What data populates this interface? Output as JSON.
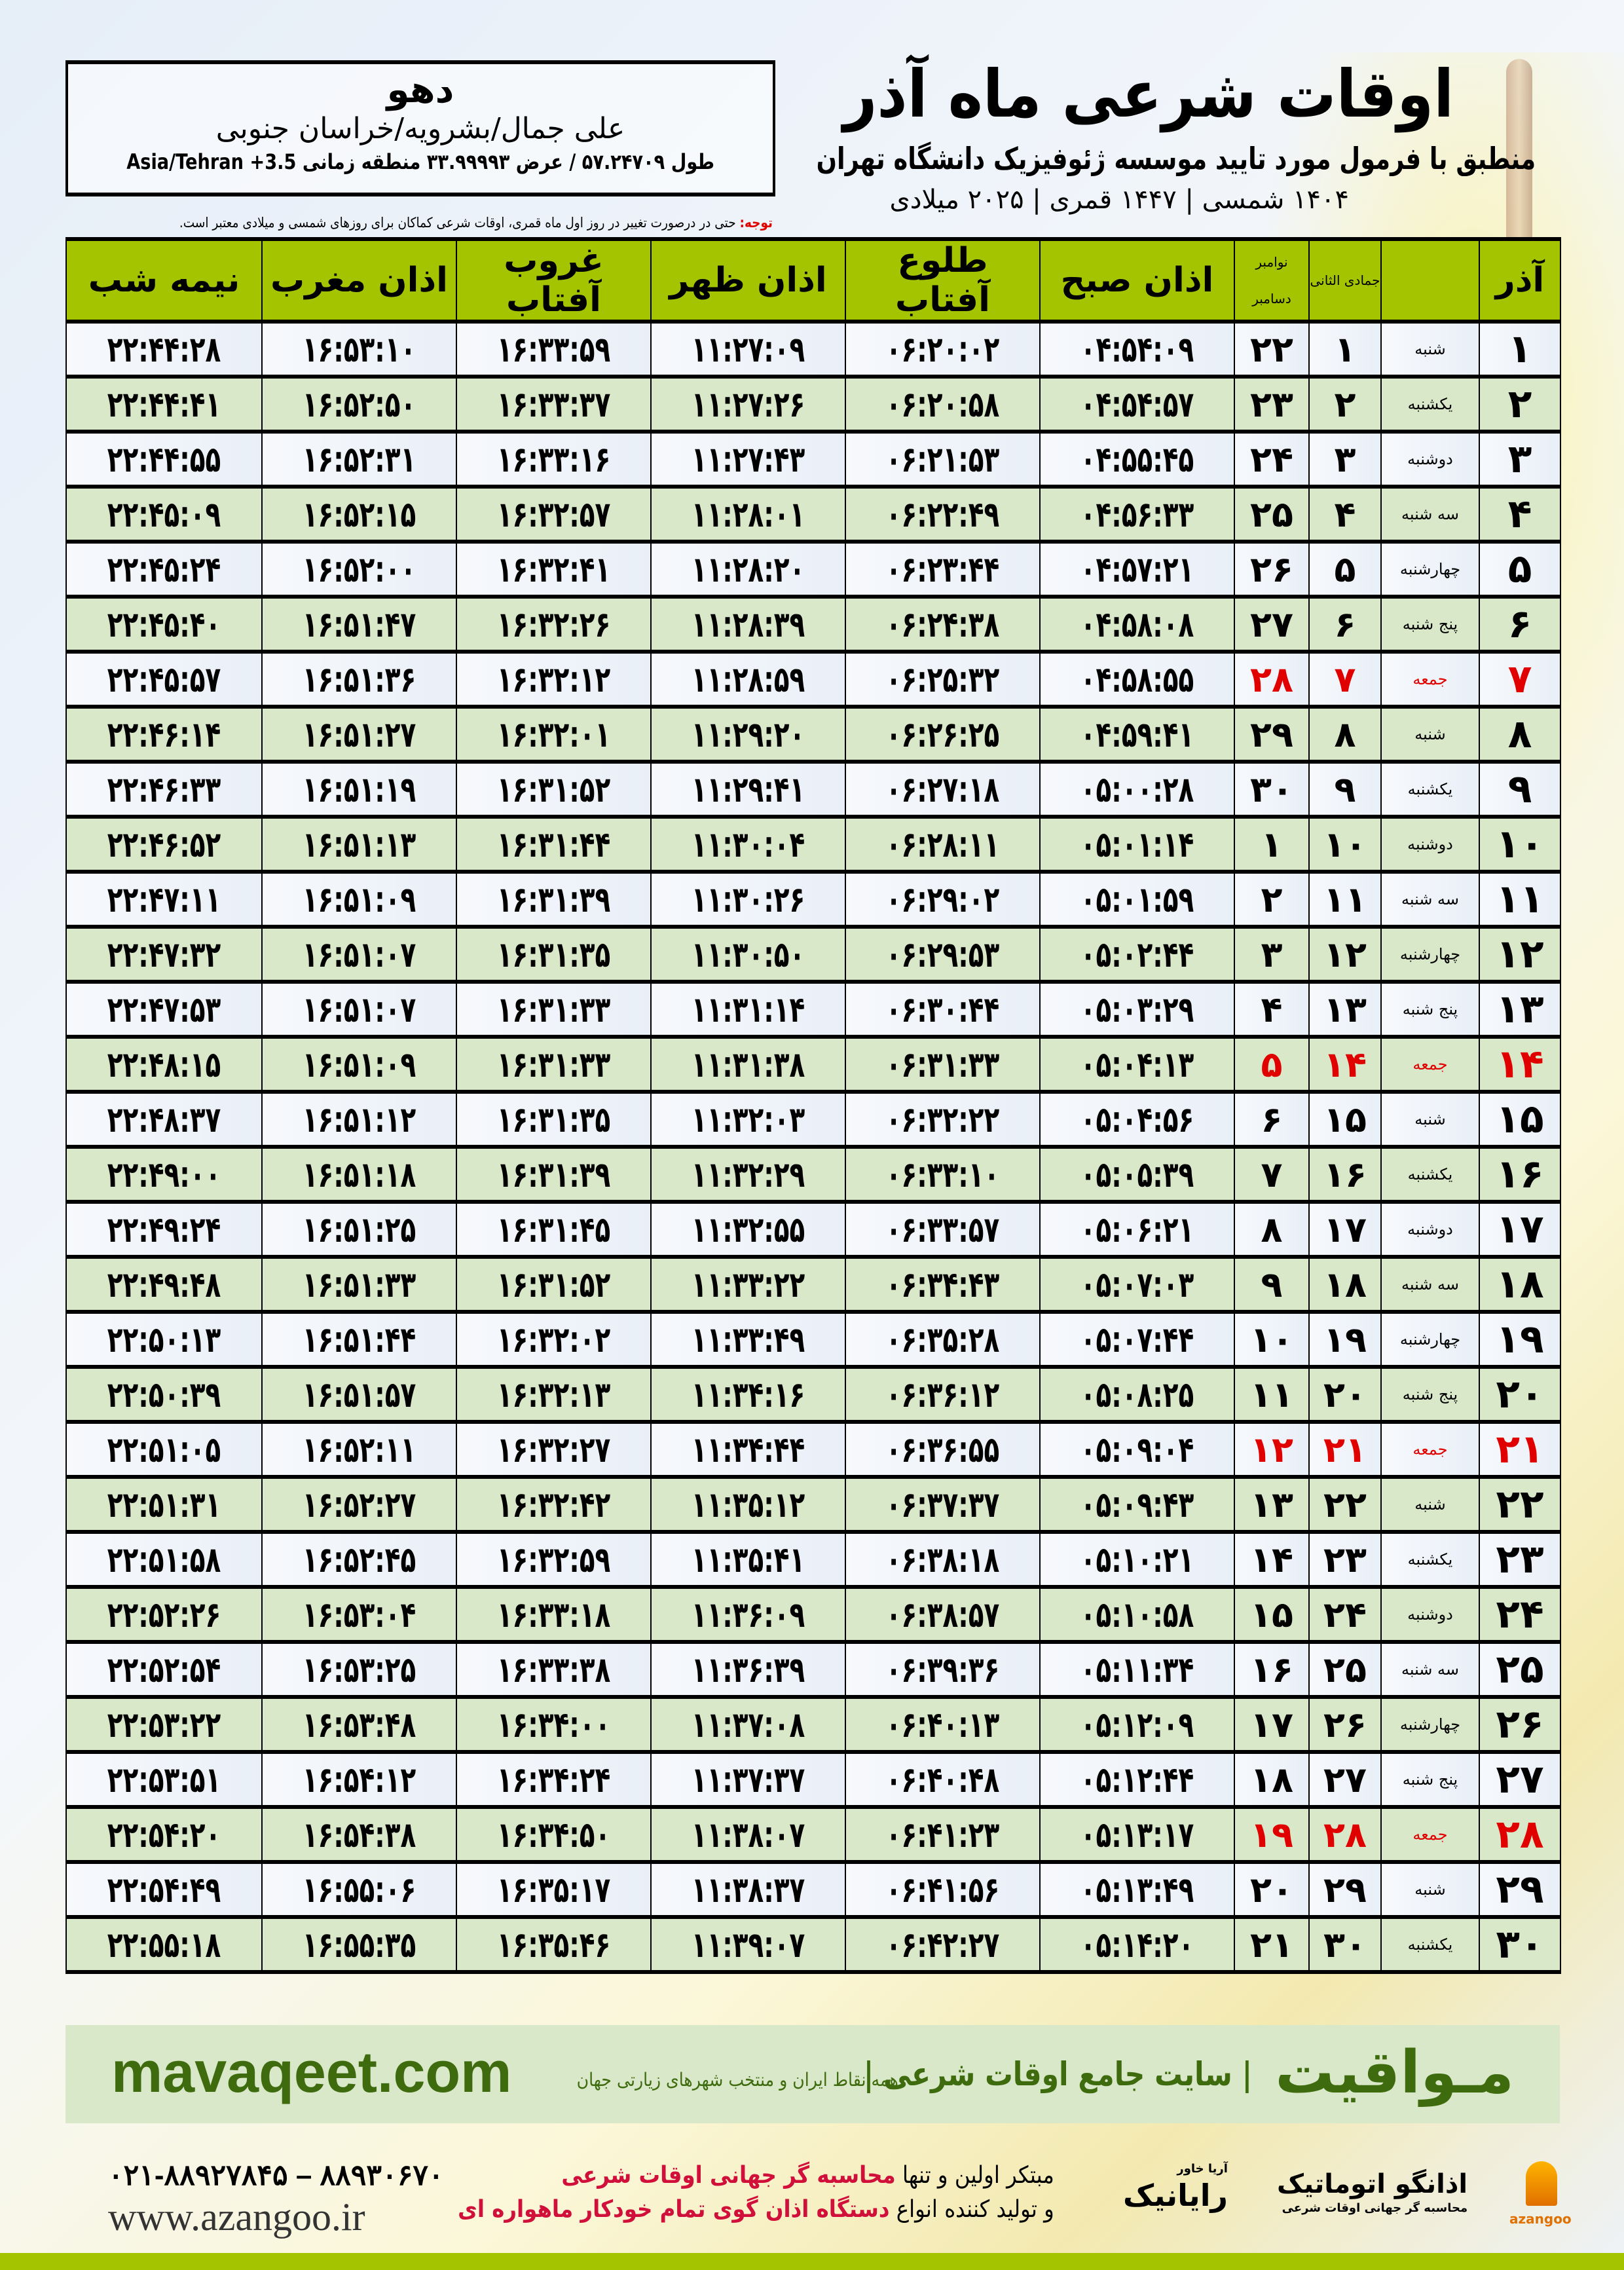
{
  "header": {
    "title": "اوقات شرعی ماه آذر",
    "subtitle": "منطبق با فرمول مورد تایید موسسه ژئوفیزیک دانشگاه تهران",
    "dates": "۱۴۰۴ شمسی | ۱۴۴۷ قمری | ۲۰۲۵ میلادی"
  },
  "location": {
    "city": "دهو",
    "place": "علی جمال/بشرویه/خراسان جنوبی",
    "coords": "طول ۵۷.۲۴۷۰۹ / عرض ۳۳.۹۹۹۹۳ منطقه زمانی ‎Asia/Tehran +3.5"
  },
  "note": {
    "label": "توجه:",
    "text": " حتی در درصورت تغییر در روز اول ماه قمری، اوقات شرعی کماکان برای روزهای شمسی و میلادی معتبر است."
  },
  "columns": {
    "day": "آذر",
    "weekday": "",
    "hijri": "جمادی الثانی",
    "greg_top": "نوامبر",
    "greg_bottom": "دسامبر",
    "fajr": "اذان صبح",
    "sunrise": "طلوع آفتاب",
    "dhuhr": "اذان ظهر",
    "sunset": "غروب آفتاب",
    "maghrib": "اذان مغرب",
    "midnight": "نیمه شب"
  },
  "colors": {
    "header_green": "#a5c400",
    "row_green": "#d9e8c8",
    "friday_red": "#e00000",
    "brand_green": "#3d6b0d"
  },
  "rows": [
    {
      "day": "۱",
      "weekday": "شنبه",
      "hijri": "۱",
      "greg": "۲۲",
      "fajr": "۰۴:۵۴:۰۹",
      "sunrise": "۰۶:۲۰:۰۲",
      "dhuhr": "۱۱:۲۷:۰۹",
      "sunset": "۱۶:۳۳:۵۹",
      "maghrib": "۱۶:۵۳:۱۰",
      "midnight": "۲۲:۴۴:۲۸",
      "friday": false
    },
    {
      "day": "۲",
      "weekday": "یکشنبه",
      "hijri": "۲",
      "greg": "۲۳",
      "fajr": "۰۴:۵۴:۵۷",
      "sunrise": "۰۶:۲۰:۵۸",
      "dhuhr": "۱۱:۲۷:۲۶",
      "sunset": "۱۶:۳۳:۳۷",
      "maghrib": "۱۶:۵۲:۵۰",
      "midnight": "۲۲:۴۴:۴۱",
      "friday": false
    },
    {
      "day": "۳",
      "weekday": "دوشنبه",
      "hijri": "۳",
      "greg": "۲۴",
      "fajr": "۰۴:۵۵:۴۵",
      "sunrise": "۰۶:۲۱:۵۳",
      "dhuhr": "۱۱:۲۷:۴۳",
      "sunset": "۱۶:۳۳:۱۶",
      "maghrib": "۱۶:۵۲:۳۱",
      "midnight": "۲۲:۴۴:۵۵",
      "friday": false
    },
    {
      "day": "۴",
      "weekday": "سه شنبه",
      "hijri": "۴",
      "greg": "۲۵",
      "fajr": "۰۴:۵۶:۳۳",
      "sunrise": "۰۶:۲۲:۴۹",
      "dhuhr": "۱۱:۲۸:۰۱",
      "sunset": "۱۶:۳۲:۵۷",
      "maghrib": "۱۶:۵۲:۱۵",
      "midnight": "۲۲:۴۵:۰۹",
      "friday": false
    },
    {
      "day": "۵",
      "weekday": "چهارشنبه",
      "hijri": "۵",
      "greg": "۲۶",
      "fajr": "۰۴:۵۷:۲۱",
      "sunrise": "۰۶:۲۳:۴۴",
      "dhuhr": "۱۱:۲۸:۲۰",
      "sunset": "۱۶:۳۲:۴۱",
      "maghrib": "۱۶:۵۲:۰۰",
      "midnight": "۲۲:۴۵:۲۴",
      "friday": false
    },
    {
      "day": "۶",
      "weekday": "پنج شنبه",
      "hijri": "۶",
      "greg": "۲۷",
      "fajr": "۰۴:۵۸:۰۸",
      "sunrise": "۰۶:۲۴:۳۸",
      "dhuhr": "۱۱:۲۸:۳۹",
      "sunset": "۱۶:۳۲:۲۶",
      "maghrib": "۱۶:۵۱:۴۷",
      "midnight": "۲۲:۴۵:۴۰",
      "friday": false
    },
    {
      "day": "۷",
      "weekday": "جمعه",
      "hijri": "۷",
      "greg": "۲۸",
      "fajr": "۰۴:۵۸:۵۵",
      "sunrise": "۰۶:۲۵:۳۲",
      "dhuhr": "۱۱:۲۸:۵۹",
      "sunset": "۱۶:۳۲:۱۲",
      "maghrib": "۱۶:۵۱:۳۶",
      "midnight": "۲۲:۴۵:۵۷",
      "friday": true
    },
    {
      "day": "۸",
      "weekday": "شنبه",
      "hijri": "۸",
      "greg": "۲۹",
      "fajr": "۰۴:۵۹:۴۱",
      "sunrise": "۰۶:۲۶:۲۵",
      "dhuhr": "۱۱:۲۹:۲۰",
      "sunset": "۱۶:۳۲:۰۱",
      "maghrib": "۱۶:۵۱:۲۷",
      "midnight": "۲۲:۴۶:۱۴",
      "friday": false
    },
    {
      "day": "۹",
      "weekday": "یکشنبه",
      "hijri": "۹",
      "greg": "۳۰",
      "fajr": "۰۵:۰۰:۲۸",
      "sunrise": "۰۶:۲۷:۱۸",
      "dhuhr": "۱۱:۲۹:۴۱",
      "sunset": "۱۶:۳۱:۵۲",
      "maghrib": "۱۶:۵۱:۱۹",
      "midnight": "۲۲:۴۶:۳۳",
      "friday": false
    },
    {
      "day": "۱۰",
      "weekday": "دوشنبه",
      "hijri": "۱۰",
      "greg": "۱",
      "fajr": "۰۵:۰۱:۱۴",
      "sunrise": "۰۶:۲۸:۱۱",
      "dhuhr": "۱۱:۳۰:۰۴",
      "sunset": "۱۶:۳۱:۴۴",
      "maghrib": "۱۶:۵۱:۱۳",
      "midnight": "۲۲:۴۶:۵۲",
      "friday": false
    },
    {
      "day": "۱۱",
      "weekday": "سه شنبه",
      "hijri": "۱۱",
      "greg": "۲",
      "fajr": "۰۵:۰۱:۵۹",
      "sunrise": "۰۶:۲۹:۰۲",
      "dhuhr": "۱۱:۳۰:۲۶",
      "sunset": "۱۶:۳۱:۳۹",
      "maghrib": "۱۶:۵۱:۰۹",
      "midnight": "۲۲:۴۷:۱۱",
      "friday": false
    },
    {
      "day": "۱۲",
      "weekday": "چهارشنبه",
      "hijri": "۱۲",
      "greg": "۳",
      "fajr": "۰۵:۰۲:۴۴",
      "sunrise": "۰۶:۲۹:۵۳",
      "dhuhr": "۱۱:۳۰:۵۰",
      "sunset": "۱۶:۳۱:۳۵",
      "maghrib": "۱۶:۵۱:۰۷",
      "midnight": "۲۲:۴۷:۳۲",
      "friday": false
    },
    {
      "day": "۱۳",
      "weekday": "پنج شنبه",
      "hijri": "۱۳",
      "greg": "۴",
      "fajr": "۰۵:۰۳:۲۹",
      "sunrise": "۰۶:۳۰:۴۴",
      "dhuhr": "۱۱:۳۱:۱۴",
      "sunset": "۱۶:۳۱:۳۳",
      "maghrib": "۱۶:۵۱:۰۷",
      "midnight": "۲۲:۴۷:۵۳",
      "friday": false
    },
    {
      "day": "۱۴",
      "weekday": "جمعه",
      "hijri": "۱۴",
      "greg": "۵",
      "fajr": "۰۵:۰۴:۱۳",
      "sunrise": "۰۶:۳۱:۳۳",
      "dhuhr": "۱۱:۳۱:۳۸",
      "sunset": "۱۶:۳۱:۳۳",
      "maghrib": "۱۶:۵۱:۰۹",
      "midnight": "۲۲:۴۸:۱۵",
      "friday": true
    },
    {
      "day": "۱۵",
      "weekday": "شنبه",
      "hijri": "۱۵",
      "greg": "۶",
      "fajr": "۰۵:۰۴:۵۶",
      "sunrise": "۰۶:۳۲:۲۲",
      "dhuhr": "۱۱:۳۲:۰۳",
      "sunset": "۱۶:۳۱:۳۵",
      "maghrib": "۱۶:۵۱:۱۲",
      "midnight": "۲۲:۴۸:۳۷",
      "friday": false
    },
    {
      "day": "۱۶",
      "weekday": "یکشنبه",
      "hijri": "۱۶",
      "greg": "۷",
      "fajr": "۰۵:۰۵:۳۹",
      "sunrise": "۰۶:۳۳:۱۰",
      "dhuhr": "۱۱:۳۲:۲۹",
      "sunset": "۱۶:۳۱:۳۹",
      "maghrib": "۱۶:۵۱:۱۸",
      "midnight": "۲۲:۴۹:۰۰",
      "friday": false
    },
    {
      "day": "۱۷",
      "weekday": "دوشنبه",
      "hijri": "۱۷",
      "greg": "۸",
      "fajr": "۰۵:۰۶:۲۱",
      "sunrise": "۰۶:۳۳:۵۷",
      "dhuhr": "۱۱:۳۲:۵۵",
      "sunset": "۱۶:۳۱:۴۵",
      "maghrib": "۱۶:۵۱:۲۵",
      "midnight": "۲۲:۴۹:۲۴",
      "friday": false
    },
    {
      "day": "۱۸",
      "weekday": "سه شنبه",
      "hijri": "۱۸",
      "greg": "۹",
      "fajr": "۰۵:۰۷:۰۳",
      "sunrise": "۰۶:۳۴:۴۳",
      "dhuhr": "۱۱:۳۳:۲۲",
      "sunset": "۱۶:۳۱:۵۲",
      "maghrib": "۱۶:۵۱:۳۳",
      "midnight": "۲۲:۴۹:۴۸",
      "friday": false
    },
    {
      "day": "۱۹",
      "weekday": "چهارشنبه",
      "hijri": "۱۹",
      "greg": "۱۰",
      "fajr": "۰۵:۰۷:۴۴",
      "sunrise": "۰۶:۳۵:۲۸",
      "dhuhr": "۱۱:۳۳:۴۹",
      "sunset": "۱۶:۳۲:۰۲",
      "maghrib": "۱۶:۵۱:۴۴",
      "midnight": "۲۲:۵۰:۱۳",
      "friday": false
    },
    {
      "day": "۲۰",
      "weekday": "پنج شنبه",
      "hijri": "۲۰",
      "greg": "۱۱",
      "fajr": "۰۵:۰۸:۲۵",
      "sunrise": "۰۶:۳۶:۱۲",
      "dhuhr": "۱۱:۳۴:۱۶",
      "sunset": "۱۶:۳۲:۱۳",
      "maghrib": "۱۶:۵۱:۵۷",
      "midnight": "۲۲:۵۰:۳۹",
      "friday": false
    },
    {
      "day": "۲۱",
      "weekday": "جمعه",
      "hijri": "۲۱",
      "greg": "۱۲",
      "fajr": "۰۵:۰۹:۰۴",
      "sunrise": "۰۶:۳۶:۵۵",
      "dhuhr": "۱۱:۳۴:۴۴",
      "sunset": "۱۶:۳۲:۲۷",
      "maghrib": "۱۶:۵۲:۱۱",
      "midnight": "۲۲:۵۱:۰۵",
      "friday": true
    },
    {
      "day": "۲۲",
      "weekday": "شنبه",
      "hijri": "۲۲",
      "greg": "۱۳",
      "fajr": "۰۵:۰۹:۴۳",
      "sunrise": "۰۶:۳۷:۳۷",
      "dhuhr": "۱۱:۳۵:۱۲",
      "sunset": "۱۶:۳۲:۴۲",
      "maghrib": "۱۶:۵۲:۲۷",
      "midnight": "۲۲:۵۱:۳۱",
      "friday": false
    },
    {
      "day": "۲۳",
      "weekday": "یکشنبه",
      "hijri": "۲۳",
      "greg": "۱۴",
      "fajr": "۰۵:۱۰:۲۱",
      "sunrise": "۰۶:۳۸:۱۸",
      "dhuhr": "۱۱:۳۵:۴۱",
      "sunset": "۱۶:۳۲:۵۹",
      "maghrib": "۱۶:۵۲:۴۵",
      "midnight": "۲۲:۵۱:۵۸",
      "friday": false
    },
    {
      "day": "۲۴",
      "weekday": "دوشنبه",
      "hijri": "۲۴",
      "greg": "۱۵",
      "fajr": "۰۵:۱۰:۵۸",
      "sunrise": "۰۶:۳۸:۵۷",
      "dhuhr": "۱۱:۳۶:۰۹",
      "sunset": "۱۶:۳۳:۱۸",
      "maghrib": "۱۶:۵۳:۰۴",
      "midnight": "۲۲:۵۲:۲۶",
      "friday": false
    },
    {
      "day": "۲۵",
      "weekday": "سه شنبه",
      "hijri": "۲۵",
      "greg": "۱۶",
      "fajr": "۰۵:۱۱:۳۴",
      "sunrise": "۰۶:۳۹:۳۶",
      "dhuhr": "۱۱:۳۶:۳۹",
      "sunset": "۱۶:۳۳:۳۸",
      "maghrib": "۱۶:۵۳:۲۵",
      "midnight": "۲۲:۵۲:۵۴",
      "friday": false
    },
    {
      "day": "۲۶",
      "weekday": "چهارشنبه",
      "hijri": "۲۶",
      "greg": "۱۷",
      "fajr": "۰۵:۱۲:۰۹",
      "sunrise": "۰۶:۴۰:۱۳",
      "dhuhr": "۱۱:۳۷:۰۸",
      "sunset": "۱۶:۳۴:۰۰",
      "maghrib": "۱۶:۵۳:۴۸",
      "midnight": "۲۲:۵۳:۲۲",
      "friday": false
    },
    {
      "day": "۲۷",
      "weekday": "پنج شنبه",
      "hijri": "۲۷",
      "greg": "۱۸",
      "fajr": "۰۵:۱۲:۴۴",
      "sunrise": "۰۶:۴۰:۴۸",
      "dhuhr": "۱۱:۳۷:۳۷",
      "sunset": "۱۶:۳۴:۲۴",
      "maghrib": "۱۶:۵۴:۱۲",
      "midnight": "۲۲:۵۳:۵۱",
      "friday": false
    },
    {
      "day": "۲۸",
      "weekday": "جمعه",
      "hijri": "۲۸",
      "greg": "۱۹",
      "fajr": "۰۵:۱۳:۱۷",
      "sunrise": "۰۶:۴۱:۲۳",
      "dhuhr": "۱۱:۳۸:۰۷",
      "sunset": "۱۶:۳۴:۵۰",
      "maghrib": "۱۶:۵۴:۳۸",
      "midnight": "۲۲:۵۴:۲۰",
      "friday": true
    },
    {
      "day": "۲۹",
      "weekday": "شنبه",
      "hijri": "۲۹",
      "greg": "۲۰",
      "fajr": "۰۵:۱۳:۴۹",
      "sunrise": "۰۶:۴۱:۵۶",
      "dhuhr": "۱۱:۳۸:۳۷",
      "sunset": "۱۶:۳۵:۱۷",
      "maghrib": "۱۶:۵۵:۰۶",
      "midnight": "۲۲:۵۴:۴۹",
      "friday": false
    },
    {
      "day": "۳۰",
      "weekday": "یکشنبه",
      "hijri": "۳۰",
      "greg": "۲۱",
      "fajr": "۰۵:۱۴:۲۰",
      "sunrise": "۰۶:۴۲:۲۷",
      "dhuhr": "۱۱:۳۹:۰۷",
      "sunset": "۱۶:۳۵:۴۶",
      "maghrib": "۱۶:۵۵:۳۵",
      "midnight": "۲۲:۵۵:۱۸",
      "friday": false
    }
  ],
  "footer": {
    "brand": "مـواقیت",
    "brand_sub": "| سایت جامع اوقات شرعی |",
    "brand_sub2": "همه نقاط ایران و منتخب شهرهای زیارتی جهان",
    "site": "mavaqeet.com",
    "ad_line1_a": "مبتکر اولین و تنها ",
    "ad_line1_b": "محاسبه گر جهانی اوقات شرعی",
    "ad_line2_a": "و تولید کننده انواع ",
    "ad_line2_b": "دستگاه اذان گوی تمام خودکار ماهواره ای",
    "phone": "۰۲۱-۸۸۹۲۷۸۴۵ – ۸۸۹۳۰۶۷۰",
    "www": "www.azangoo.ir",
    "logo_rayanik": "رایانیک",
    "logo_rayanik_small": "آریا خاور",
    "logo_azangoo": "اذانگو اتوماتیک",
    "logo_azangoo_small": "محاسبه گر جهانی اوقات شرعی",
    "logo_azangoo_en": "azangoo"
  }
}
